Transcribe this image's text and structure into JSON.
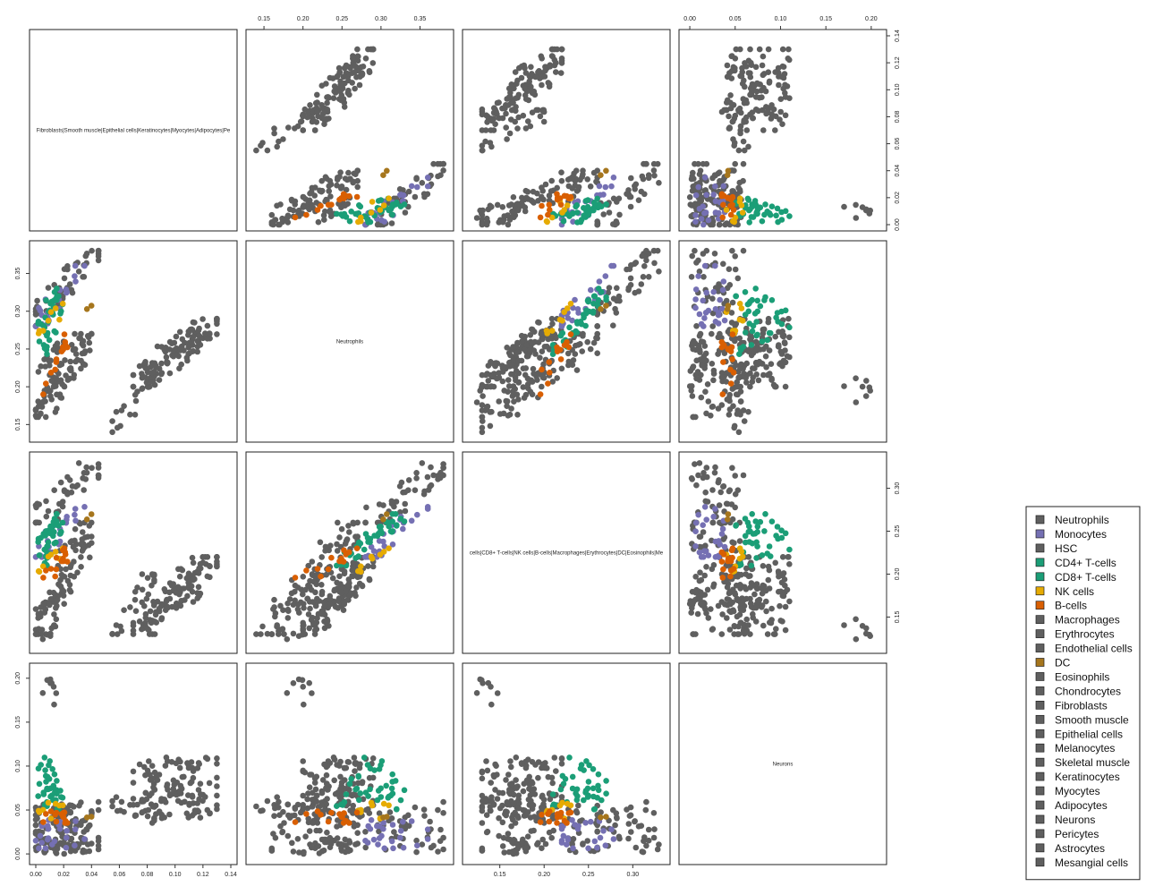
{
  "colors": {
    "grey": "#5f5f5f",
    "purple": "#7570b3",
    "teal": "#1b9e77",
    "orange": "#d95f02",
    "gold": "#e6ab02",
    "brown": "#a6761d"
  },
  "chart_data": {
    "type": "scatter",
    "title": "",
    "variables": [
      {
        "label": "Fibroblasts|Smooth muscle|Epithelial cells|Keratinocytes|Myocytes|Adipocytes|Pe",
        "range": [
          0,
          0.14
        ],
        "ticks": [
          {
            "value": 0,
            "label": "0.00"
          },
          {
            "value": 0.02,
            "label": "0.02"
          },
          {
            "value": 0.04,
            "label": "0.04"
          },
          {
            "value": 0.06,
            "label": "0.06"
          },
          {
            "value": 0.08,
            "label": "0.08"
          },
          {
            "value": 0.1,
            "label": "0.10"
          },
          {
            "value": 0.12,
            "label": "0.12"
          },
          {
            "value": 0.14,
            "label": "0.14"
          }
        ]
      },
      {
        "label": "Neutrophils",
        "range": [
          0.135,
          0.385
        ],
        "ticks": [
          {
            "value": 0.15,
            "label": "0.15"
          },
          {
            "value": 0.2,
            "label": "0.20"
          },
          {
            "value": 0.25,
            "label": "0.25"
          },
          {
            "value": 0.3,
            "label": "0.30"
          },
          {
            "value": 0.35,
            "label": "0.35"
          }
        ]
      },
      {
        "label": "cells|CD8+ T-cells|NK cells|B-cells|Macrophages|Erythrocytes|DC|Eosinophils|Me",
        "range": [
          0.115,
          0.335
        ],
        "ticks": [
          {
            "value": 0.15,
            "label": "0.15"
          },
          {
            "value": 0.2,
            "label": "0.20"
          },
          {
            "value": 0.25,
            "label": "0.25"
          },
          {
            "value": 0.3,
            "label": "0.30"
          }
        ]
      },
      {
        "label": "Neurons",
        "range": [
          -0.005,
          0.21
        ],
        "ticks": [
          {
            "value": 0,
            "label": "0.00"
          },
          {
            "value": 0.05,
            "label": "0.05"
          },
          {
            "value": 0.1,
            "label": "0.10"
          },
          {
            "value": 0.15,
            "label": "0.15"
          },
          {
            "value": 0.2,
            "label": "0.20"
          }
        ]
      }
    ],
    "groups": [
      {
        "name": "Neutrophils",
        "color": "#5f5f5f"
      },
      {
        "name": "Monocytes",
        "color": "#7570b3"
      },
      {
        "name": "HSC",
        "color": "#5f5f5f"
      },
      {
        "name": "CD4+ T-cells",
        "color": "#1b9e77"
      },
      {
        "name": "CD8+ T-cells",
        "color": "#1b9e77"
      },
      {
        "name": "NK cells",
        "color": "#e6ab02"
      },
      {
        "name": "B-cells",
        "color": "#d95f02"
      },
      {
        "name": "Macrophages",
        "color": "#5f5f5f"
      },
      {
        "name": "Erythrocytes",
        "color": "#5f5f5f"
      },
      {
        "name": "Endothelial cells",
        "color": "#5f5f5f"
      },
      {
        "name": "DC",
        "color": "#a6761d"
      },
      {
        "name": "Eosinophils",
        "color": "#5f5f5f"
      },
      {
        "name": "Chondrocytes",
        "color": "#5f5f5f"
      },
      {
        "name": "Fibroblasts",
        "color": "#5f5f5f"
      },
      {
        "name": "Smooth muscle",
        "color": "#5f5f5f"
      },
      {
        "name": "Epithelial cells",
        "color": "#5f5f5f"
      },
      {
        "name": "Melanocytes",
        "color": "#5f5f5f"
      },
      {
        "name": "Skeletal muscle",
        "color": "#5f5f5f"
      },
      {
        "name": "Keratinocytes",
        "color": "#5f5f5f"
      },
      {
        "name": "Myocytes",
        "color": "#5f5f5f"
      },
      {
        "name": "Adipocytes",
        "color": "#5f5f5f"
      },
      {
        "name": "Neurons",
        "color": "#5f5f5f"
      },
      {
        "name": "Pericytes",
        "color": "#5f5f5f"
      },
      {
        "name": "Astrocytes",
        "color": "#5f5f5f"
      },
      {
        "name": "Mesangial cells",
        "color": "#5f5f5f"
      }
    ],
    "clusters": [
      {
        "group": "Fibroblasts",
        "v1": [
          0.07,
          0.13
        ],
        "v2": [
          0.2,
          0.29
        ],
        "v3": [
          0.13,
          0.22
        ],
        "v4": [
          0.04,
          0.11
        ],
        "n": 120
      },
      {
        "group": "Epithelial cells",
        "v1": [
          0.055,
          0.085
        ],
        "v2": [
          0.14,
          0.22
        ],
        "v3": [
          0.13,
          0.2
        ],
        "v4": [
          0.035,
          0.07
        ],
        "n": 25
      },
      {
        "group": "Astrocytes",
        "v1": [
          0.0,
          0.04
        ],
        "v2": [
          0.16,
          0.27
        ],
        "v3": [
          0.13,
          0.26
        ],
        "v4": [
          0.0,
          0.06
        ],
        "n": 80
      },
      {
        "group": "Macrophages",
        "v1": [
          0.0,
          0.045
        ],
        "v2": [
          0.28,
          0.38
        ],
        "v3": [
          0.26,
          0.33
        ],
        "v4": [
          0.0,
          0.06
        ],
        "n": 45
      },
      {
        "group": "Neurons",
        "v1": [
          0.005,
          0.015
        ],
        "v2": [
          0.175,
          0.215
        ],
        "v3": [
          0.12,
          0.15
        ],
        "v4": [
          0.17,
          0.205
        ],
        "n": 8
      },
      {
        "group": "Chondrocytes",
        "v1": [
          0.0,
          0.02
        ],
        "v2": [
          0.21,
          0.26
        ],
        "v3": [
          0.15,
          0.18
        ],
        "v4": [
          0.0,
          0.02
        ],
        "n": 15
      },
      {
        "group": "Monocytes",
        "v1": [
          0.0,
          0.035
        ],
        "v2": [
          0.28,
          0.36
        ],
        "v3": [
          0.22,
          0.28
        ],
        "v4": [
          0.005,
          0.04
        ],
        "n": 25
      },
      {
        "group": "CD4+ T-cells",
        "v1": [
          0.0,
          0.015
        ],
        "v2": [
          0.26,
          0.33
        ],
        "v3": [
          0.22,
          0.27
        ],
        "v4": [
          0.06,
          0.11
        ],
        "n": 22
      },
      {
        "group": "CD8+ T-cells",
        "v1": [
          0.005,
          0.02
        ],
        "v2": [
          0.24,
          0.32
        ],
        "v3": [
          0.21,
          0.26
        ],
        "v4": [
          0.05,
          0.09
        ],
        "n": 18
      },
      {
        "group": "NK cells",
        "v1": [
          0.0,
          0.02
        ],
        "v2": [
          0.26,
          0.31
        ],
        "v3": [
          0.2,
          0.23
        ],
        "v4": [
          0.04,
          0.06
        ],
        "n": 8
      },
      {
        "group": "B-cells",
        "v1": [
          0.005,
          0.025
        ],
        "v2": [
          0.19,
          0.27
        ],
        "v3": [
          0.19,
          0.23
        ],
        "v4": [
          0.035,
          0.05
        ],
        "n": 14
      },
      {
        "group": "DC",
        "v1": [
          0.035,
          0.04
        ],
        "v2": [
          0.3,
          0.31
        ],
        "v3": [
          0.26,
          0.27
        ],
        "v4": [
          0.04,
          0.05
        ],
        "n": 2
      }
    ],
    "legend": "right"
  }
}
